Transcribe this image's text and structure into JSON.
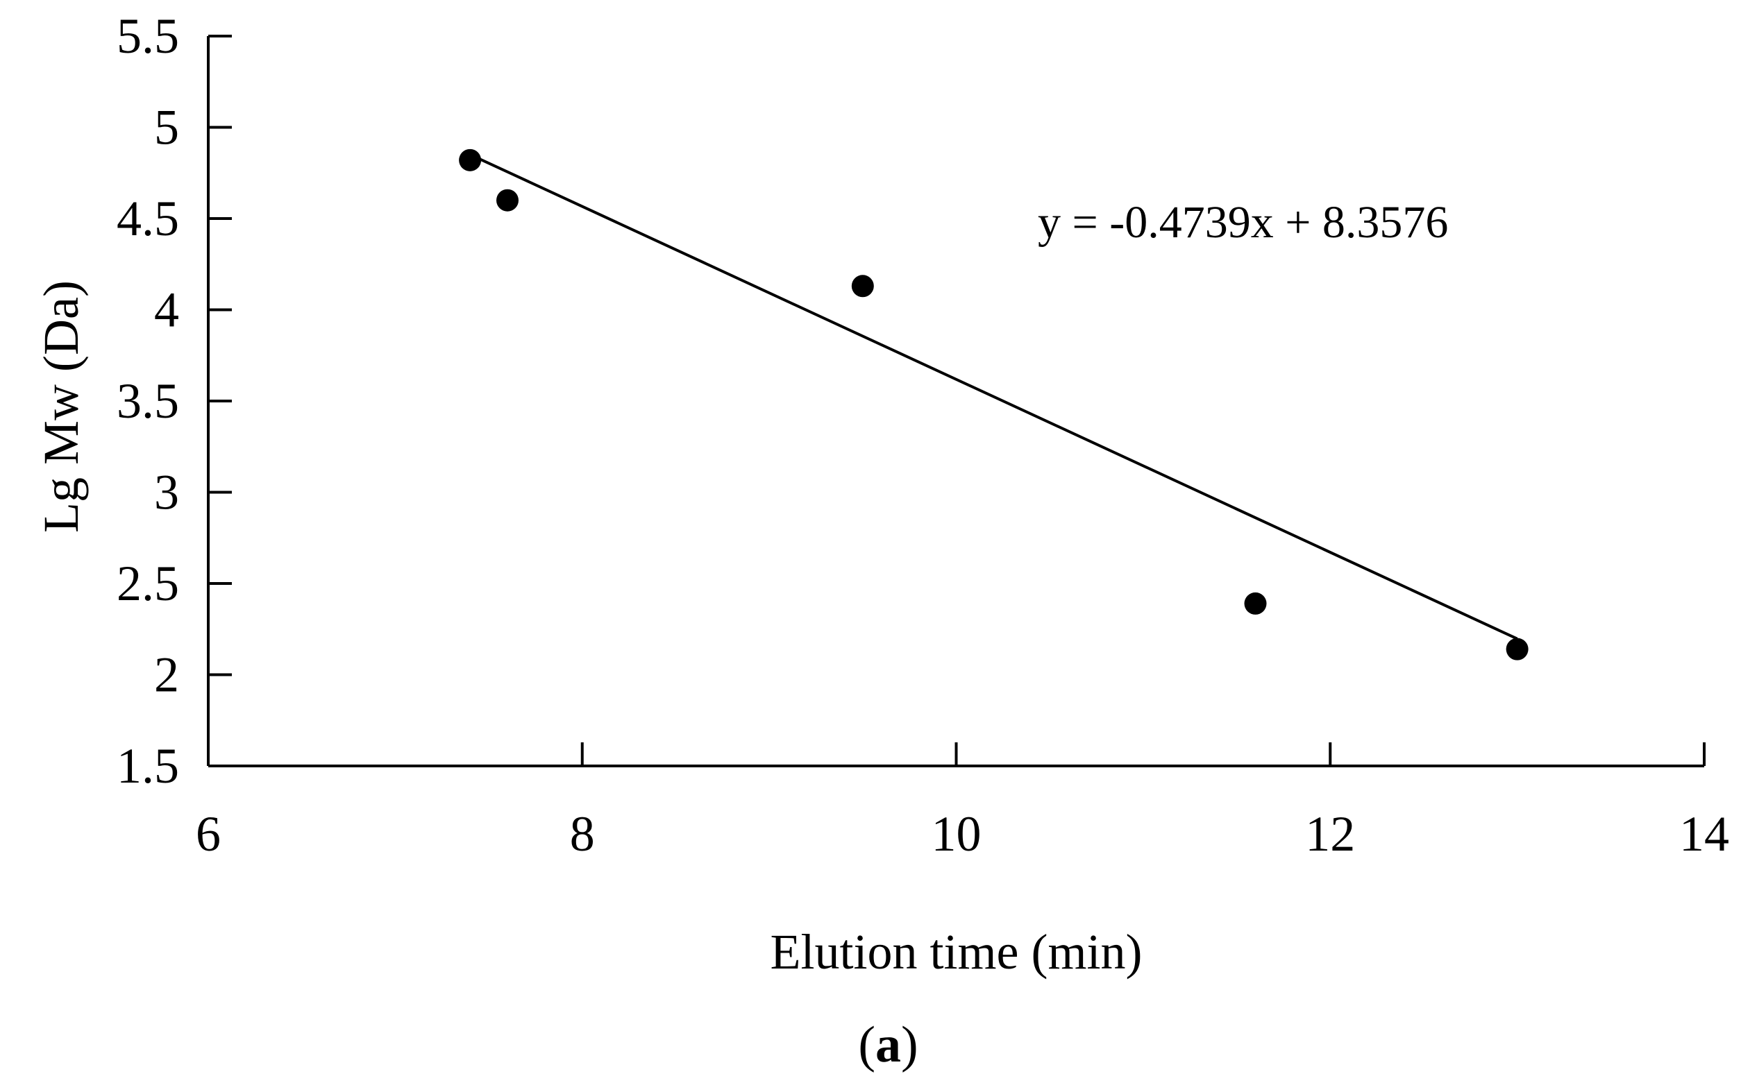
{
  "chart_data": {
    "type": "scatter",
    "xlabel": "Elution time (min)",
    "ylabel": "Lg Mw (Da)",
    "xlim": [
      6,
      14
    ],
    "ylim": [
      1.5,
      5.5
    ],
    "x_ticks": [
      "6",
      "8",
      "10",
      "12",
      "14"
    ],
    "y_ticks": [
      "1.5",
      "2",
      "2.5",
      "3",
      "3.5",
      "4",
      "4.5",
      "5",
      "5.5"
    ],
    "grid": false,
    "series": [
      {
        "x": [
          7.4,
          7.6,
          9.5,
          11.6,
          13.0
        ],
        "y": [
          4.82,
          4.6,
          4.13,
          2.39,
          2.14
        ]
      }
    ],
    "trendline": {
      "type": "linear",
      "slope": -0.4739,
      "intercept": 8.3576,
      "x_range": [
        7.4,
        13.0
      ],
      "equation": "y = -0.4739x + 8.3576"
    },
    "panel_label": {
      "open": "(",
      "letter": "a",
      "close": ")"
    },
    "colors": {
      "marker": "#000000",
      "line": "#000000"
    }
  }
}
